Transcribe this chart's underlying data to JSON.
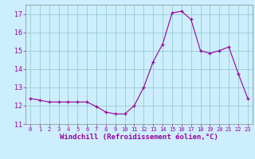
{
  "x": [
    0,
    1,
    2,
    3,
    4,
    5,
    6,
    7,
    8,
    9,
    10,
    11,
    12,
    13,
    14,
    15,
    16,
    17,
    18,
    19,
    20,
    21,
    22,
    23
  ],
  "y": [
    12.4,
    12.3,
    12.2,
    12.2,
    12.2,
    12.2,
    12.2,
    11.95,
    11.65,
    11.55,
    11.55,
    12.0,
    13.0,
    14.4,
    15.35,
    17.05,
    17.15,
    16.7,
    15.0,
    14.85,
    15.0,
    15.2,
    13.75,
    12.4
  ],
  "line_color": "#990099",
  "marker": "+",
  "marker_size": 3,
  "background_color": "#cceeff",
  "grid_color": "#99cccc",
  "xlabel": "Windchill (Refroidissement éolien,°C)",
  "xlabel_fontsize": 6.5,
  "ylim": [
    11,
    17.5
  ],
  "xlim": [
    -0.5,
    23.5
  ],
  "yticks": [
    11,
    12,
    13,
    14,
    15,
    16,
    17
  ],
  "xticks": [
    0,
    1,
    2,
    3,
    4,
    5,
    6,
    7,
    8,
    9,
    10,
    11,
    12,
    13,
    14,
    15,
    16,
    17,
    18,
    19,
    20,
    21,
    22,
    23
  ],
  "tick_fontsize": 6,
  "tick_color": "#990099",
  "spine_color": "#888888"
}
